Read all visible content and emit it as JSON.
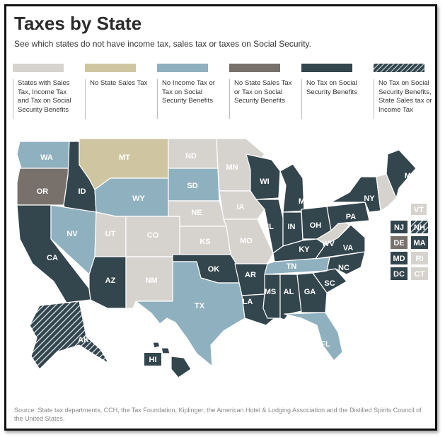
{
  "title": "Taxes by State",
  "subtitle": "See which states do not have income tax, sales tax or taxes on Social Security.",
  "legend": [
    {
      "key": "all",
      "label": "States with Sales Tax, Income Tax and Tax on Social Security Benefits",
      "color": "#d6d3cf"
    },
    {
      "key": "nosales",
      "label": "No State Sales Tax",
      "color": "#cfc6a1"
    },
    {
      "key": "noincome",
      "label": "No Income Tax or Tax on Social Security Benefits",
      "color": "#8fb0bf"
    },
    {
      "key": "nosalesss",
      "label": "No State Sales Tax or Tax on Social Security Benefits",
      "color": "#77706b"
    },
    {
      "key": "noss",
      "label": "No Tax on Social Security Benefits",
      "color": "#33454d"
    },
    {
      "key": "noss_sales_income",
      "label": "No Tax on Social Security Benefits, State Sales tax or Income Tax",
      "color": "#33454d",
      "pattern": "hatched"
    }
  ],
  "states": {
    "WA": "WA",
    "OR": "OR",
    "CA": "CA",
    "ID": "ID",
    "NV": "NV",
    "MT": "MT",
    "WY": "WY",
    "UT": "UT",
    "CO": "CO",
    "AZ": "AZ",
    "NM": "NM",
    "ND": "ND",
    "SD": "SD",
    "NE": "NE",
    "KS": "KS",
    "OK": "OK",
    "TX": "TX",
    "MN": "MN",
    "IA": "IA",
    "MO": "MO",
    "AR": "AR",
    "LA": "LA",
    "WI": "WI",
    "IL": "IL",
    "MI": "MI",
    "IN": "IN",
    "OH": "OH",
    "KY": "KY",
    "TN": "TN",
    "MS": "MS",
    "AL": "AL",
    "GA": "GA",
    "FL": "FL",
    "SC": "SC",
    "NC": "NC",
    "VA": "VA",
    "WV": "WV",
    "PA": "PA",
    "NY": "NY",
    "ME": "ME",
    "AK": "AK",
    "HI": "HI",
    "VT": "VT",
    "NH": "NH",
    "NJ": "NJ",
    "DE": "DE",
    "MA": "MA",
    "MD": "MD",
    "RI": "RI",
    "DC": "DC",
    "CT": "CT"
  },
  "source": "Source:  State tax departments, CCH, the Tax Foundation, Kiplinger, the American Hotel & Lodging Association and the Distilled Spirits Council of the United States."
}
